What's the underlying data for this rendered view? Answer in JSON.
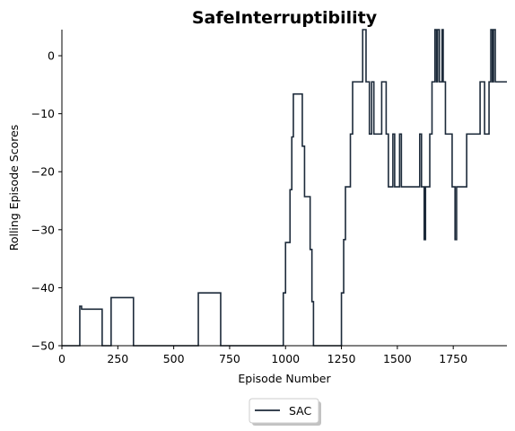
{
  "chart_data": {
    "type": "line",
    "title": "SafeInterruptibility",
    "xlabel": "Episode Number",
    "ylabel": "Rolling Episode Scores",
    "xlim": [
      0,
      1990
    ],
    "ylim": [
      -50,
      4.5
    ],
    "xticks": [
      0,
      250,
      500,
      750,
      1000,
      1250,
      1500,
      1750
    ],
    "yticks": [
      0,
      -10,
      -20,
      -30,
      -40,
      -50
    ],
    "grid": false,
    "legend_position": "bottom-center, below plot",
    "series": [
      {
        "name": "SAC",
        "color": "#1c2a3a",
        "points": [
          [
            0,
            -50
          ],
          [
            80,
            -50
          ],
          [
            80,
            -43.2
          ],
          [
            88,
            -43.2
          ],
          [
            88,
            -43.7
          ],
          [
            180,
            -43.7
          ],
          [
            180,
            -50
          ],
          [
            220,
            -50
          ],
          [
            220,
            -41.7
          ],
          [
            320,
            -41.7
          ],
          [
            320,
            -50
          ],
          [
            610,
            -50
          ],
          [
            610,
            -40.9
          ],
          [
            710,
            -40.9
          ],
          [
            710,
            -50
          ],
          [
            990,
            -50
          ],
          [
            990,
            -40.9
          ],
          [
            1000,
            -40.9
          ],
          [
            1000,
            -32.2
          ],
          [
            1020,
            -32.2
          ],
          [
            1020,
            -23.1
          ],
          [
            1028,
            -23.1
          ],
          [
            1028,
            -14
          ],
          [
            1035,
            -14
          ],
          [
            1035,
            -6.6
          ],
          [
            1075,
            -6.6
          ],
          [
            1075,
            -15.6
          ],
          [
            1085,
            -15.6
          ],
          [
            1085,
            -24.3
          ],
          [
            1110,
            -24.3
          ],
          [
            1110,
            -33.4
          ],
          [
            1118,
            -33.4
          ],
          [
            1118,
            -42.4
          ],
          [
            1125,
            -42.4
          ],
          [
            1125,
            -50
          ],
          [
            1250,
            -50
          ],
          [
            1250,
            -40.9
          ],
          [
            1260,
            -40.9
          ],
          [
            1260,
            -31.7
          ],
          [
            1268,
            -31.7
          ],
          [
            1268,
            -22.6
          ],
          [
            1290,
            -22.6
          ],
          [
            1290,
            -13.5
          ],
          [
            1300,
            -13.5
          ],
          [
            1300,
            -4.5
          ],
          [
            1345,
            -4.5
          ],
          [
            1345,
            4.5
          ],
          [
            1360,
            4.5
          ],
          [
            1360,
            -4.5
          ],
          [
            1375,
            -4.5
          ],
          [
            1375,
            -13.5
          ],
          [
            1385,
            -13.5
          ],
          [
            1385,
            -4.5
          ],
          [
            1395,
            -4.5
          ],
          [
            1395,
            -13.5
          ],
          [
            1430,
            -13.5
          ],
          [
            1430,
            -4.5
          ],
          [
            1450,
            -4.5
          ],
          [
            1450,
            -13.5
          ],
          [
            1460,
            -13.5
          ],
          [
            1460,
            -22.6
          ],
          [
            1480,
            -22.6
          ],
          [
            1480,
            -13.5
          ],
          [
            1488,
            -13.5
          ],
          [
            1488,
            -22.6
          ],
          [
            1510,
            -22.6
          ],
          [
            1510,
            -13.5
          ],
          [
            1518,
            -13.5
          ],
          [
            1518,
            -22.6
          ],
          [
            1600,
            -22.6
          ],
          [
            1600,
            -13.5
          ],
          [
            1608,
            -13.5
          ],
          [
            1608,
            -22.6
          ],
          [
            1620,
            -22.6
          ],
          [
            1620,
            -31.7
          ],
          [
            1626,
            -31.7
          ],
          [
            1626,
            -22.6
          ],
          [
            1645,
            -22.6
          ],
          [
            1645,
            -13.5
          ],
          [
            1655,
            -13.5
          ],
          [
            1655,
            -4.5
          ],
          [
            1668,
            -4.5
          ],
          [
            1668,
            4.5
          ],
          [
            1675,
            4.5
          ],
          [
            1675,
            -4.5
          ],
          [
            1680,
            -4.5
          ],
          [
            1680,
            4.5
          ],
          [
            1688,
            4.5
          ],
          [
            1688,
            -4.5
          ],
          [
            1700,
            -4.5
          ],
          [
            1700,
            4.5
          ],
          [
            1705,
            4.5
          ],
          [
            1705,
            -4.5
          ],
          [
            1715,
            -4.5
          ],
          [
            1715,
            -13.5
          ],
          [
            1745,
            -13.5
          ],
          [
            1745,
            -22.6
          ],
          [
            1758,
            -22.6
          ],
          [
            1758,
            -31.7
          ],
          [
            1765,
            -31.7
          ],
          [
            1765,
            -22.6
          ],
          [
            1810,
            -22.6
          ],
          [
            1810,
            -13.5
          ],
          [
            1870,
            -13.5
          ],
          [
            1870,
            -4.5
          ],
          [
            1890,
            -4.5
          ],
          [
            1890,
            -13.5
          ],
          [
            1910,
            -13.5
          ],
          [
            1910,
            -4.5
          ],
          [
            1918,
            -4.5
          ],
          [
            1918,
            4.5
          ],
          [
            1925,
            4.5
          ],
          [
            1925,
            -4.5
          ],
          [
            1930,
            -4.5
          ],
          [
            1930,
            4.5
          ],
          [
            1938,
            4.5
          ],
          [
            1938,
            -4.5
          ],
          [
            1990,
            -4.5
          ]
        ]
      }
    ]
  }
}
